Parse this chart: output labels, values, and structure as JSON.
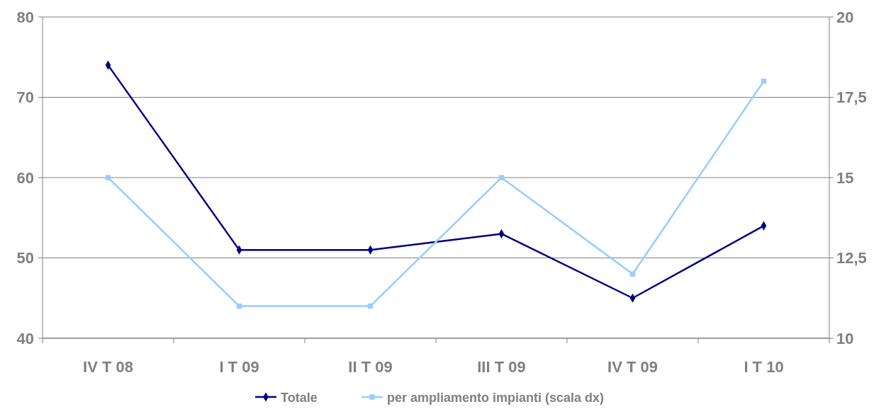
{
  "chart_data": {
    "type": "line",
    "categories": [
      "IV T 08",
      "I T 09",
      "II T 09",
      "III T 09",
      "IV T 09",
      "I T 10"
    ],
    "series": [
      {
        "name": "Totale",
        "color": "#000080",
        "values": [
          74,
          51,
          51,
          53,
          45,
          54
        ],
        "marker": "diamond"
      },
      {
        "name": "per ampliamento impianti (scala dx)",
        "color": "#99ccff",
        "values": [
          15,
          11,
          11,
          15,
          12,
          18
        ],
        "axis": "y2",
        "marker": "square"
      }
    ],
    "ylim": [
      40,
      80
    ],
    "yticks": [
      40,
      50,
      60,
      70,
      80
    ],
    "y2lim": [
      10,
      20
    ],
    "y2ticks": [
      10,
      {
        "value": 12.5,
        "label": "12,5"
      },
      15,
      {
        "value": 17.5,
        "label": "17,5"
      },
      20
    ],
    "grid": "y",
    "legend": "bottom"
  }
}
